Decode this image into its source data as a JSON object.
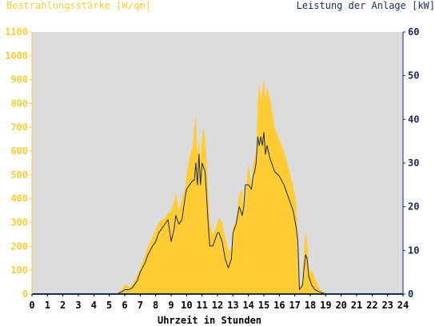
{
  "chart_data": {
    "type": "area",
    "title_left": "Bestrahlungsstärke [W/qm]",
    "title_right": "Leistung der Anlage [kW]",
    "xlabel": "Uhrzeit in Stunden",
    "xlim": [
      0,
      24
    ],
    "ylim_left": [
      0,
      1100
    ],
    "ylim_right": [
      0,
      60
    ],
    "x_ticks": [
      "0",
      "1",
      "2",
      "3",
      "4",
      "5",
      "6",
      "7",
      "8",
      "9",
      "10",
      "11",
      "12",
      "13",
      "14",
      "15",
      "16",
      "17",
      "18",
      "19",
      "20",
      "21",
      "22",
      "23",
      "24"
    ],
    "y_ticks_left": [
      "0",
      "100",
      "200",
      "300",
      "400",
      "500",
      "600",
      "700",
      "800",
      "900",
      "1000",
      "1100"
    ],
    "y_ticks_right": [
      "0",
      "10",
      "20",
      "30",
      "40",
      "50",
      "60"
    ],
    "grid": false,
    "colors": {
      "plot_bg": "#dcdcdc",
      "irradiance_fill": "#ffcc33",
      "power_line": "#1a2a5a",
      "left_axis": "#ffcc33",
      "right_axis": "#1a2a5a",
      "baseline": "#1a2a5a"
    },
    "series": [
      {
        "name": "Bestrahlungsstärke",
        "axis": "left",
        "x": [
          0,
          5.5,
          5.8,
          6.0,
          6.3,
          6.5,
          6.8,
          7.0,
          7.3,
          7.5,
          7.8,
          8.0,
          8.2,
          8.4,
          8.6,
          8.8,
          9.0,
          9.2,
          9.3,
          9.5,
          9.7,
          9.9,
          10.0,
          10.2,
          10.4,
          10.5,
          10.6,
          10.7,
          10.8,
          10.9,
          11.0,
          11.1,
          11.2,
          11.3,
          11.4,
          11.5,
          11.6,
          11.7,
          11.8,
          12.0,
          12.1,
          12.3,
          12.5,
          12.7,
          12.9,
          13.0,
          13.2,
          13.4,
          13.6,
          13.7,
          13.8,
          14.0,
          14.2,
          14.3,
          14.4,
          14.5,
          14.6,
          14.7,
          14.8,
          14.9,
          15.0,
          15.1,
          15.2,
          15.4,
          15.5,
          15.7,
          16.0,
          16.3,
          16.6,
          16.9,
          17.1,
          17.2,
          17.3,
          17.5,
          17.6,
          17.7,
          17.8,
          17.9,
          18.0,
          18.1,
          18.3,
          18.6,
          19.0,
          19.3,
          24
        ],
        "values": [
          0,
          0,
          20,
          40,
          30,
          40,
          80,
          110,
          160,
          200,
          240,
          270,
          300,
          310,
          320,
          340,
          350,
          390,
          430,
          350,
          400,
          440,
          500,
          580,
          620,
          700,
          750,
          580,
          650,
          560,
          660,
          700,
          650,
          550,
          430,
          310,
          270,
          250,
          260,
          300,
          320,
          300,
          240,
          180,
          190,
          280,
          300,
          420,
          440,
          340,
          420,
          550,
          450,
          550,
          560,
          600,
          800,
          890,
          820,
          860,
          900,
          820,
          870,
          820,
          780,
          700,
          650,
          600,
          530,
          450,
          380,
          250,
          10,
          60,
          200,
          260,
          220,
          120,
          90,
          100,
          70,
          20,
          5,
          0,
          0
        ]
      },
      {
        "name": "Leistung der Anlage",
        "axis": "right",
        "x": [
          0,
          5.5,
          5.8,
          6.0,
          6.3,
          6.5,
          6.8,
          7.0,
          7.3,
          7.5,
          7.8,
          8.0,
          8.2,
          8.4,
          8.6,
          8.8,
          9.0,
          9.2,
          9.3,
          9.5,
          9.7,
          9.9,
          10.0,
          10.2,
          10.4,
          10.5,
          10.6,
          10.7,
          10.8,
          10.9,
          11.0,
          11.1,
          11.2,
          11.3,
          11.4,
          11.5,
          11.6,
          11.7,
          11.8,
          12.0,
          12.1,
          12.3,
          12.5,
          12.7,
          12.9,
          13.0,
          13.2,
          13.4,
          13.6,
          13.7,
          13.8,
          14.0,
          14.2,
          14.3,
          14.4,
          14.5,
          14.6,
          14.7,
          14.8,
          14.9,
          15.0,
          15.1,
          15.2,
          15.4,
          15.5,
          15.7,
          16.0,
          16.3,
          16.6,
          16.9,
          17.1,
          17.2,
          17.3,
          17.5,
          17.6,
          17.7,
          17.8,
          17.9,
          18.0,
          18.1,
          18.3,
          18.6,
          19.0,
          19.3,
          24
        ],
        "values": [
          0,
          0,
          0.5,
          1,
          1,
          1.5,
          3,
          5,
          7,
          9,
          11,
          12,
          14,
          15,
          16,
          17,
          12,
          15,
          18,
          16,
          17,
          22,
          24,
          25,
          26,
          26,
          30,
          25,
          32,
          25,
          30,
          29,
          28,
          22,
          16,
          11,
          11,
          11,
          12,
          14,
          14,
          12,
          8,
          6,
          8,
          14,
          16,
          20,
          18,
          20,
          25,
          25,
          24,
          27,
          28,
          30,
          36,
          34,
          36,
          34,
          37,
          32,
          34,
          31,
          30,
          28,
          27,
          25,
          22,
          19,
          15,
          12,
          1,
          2,
          6,
          9,
          8,
          4,
          3,
          2,
          1,
          0.5,
          0,
          0,
          0
        ]
      }
    ]
  }
}
